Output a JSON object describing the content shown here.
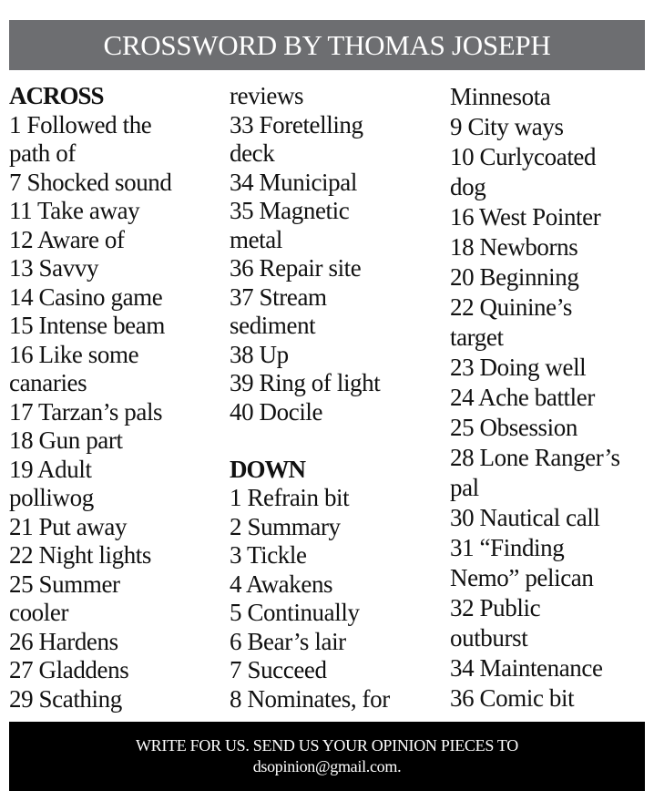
{
  "header": {
    "title": "CROSSWORD BY THOMAS JOSEPH"
  },
  "columns": [
    [
      {
        "text": "ACROSS",
        "heading": true
      },
      {
        "text": "1 Followed the"
      },
      {
        "text": "path of"
      },
      {
        "text": "7 Shocked sound"
      },
      {
        "text": "11 Take away"
      },
      {
        "text": "12 Aware of"
      },
      {
        "text": "13 Savvy"
      },
      {
        "text": "14 Casino game"
      },
      {
        "text": "15 Intense beam"
      },
      {
        "text": "16 Like some"
      },
      {
        "text": "canaries"
      },
      {
        "text": "17 Tarzan’s pals"
      },
      {
        "text": "18 Gun part"
      },
      {
        "text": "19 Adult"
      },
      {
        "text": "polliwog"
      },
      {
        "text": "21 Put away"
      },
      {
        "text": "22 Night lights"
      },
      {
        "text": "25 Summer"
      },
      {
        "text": "cooler"
      },
      {
        "text": "26 Hardens"
      },
      {
        "text": "27 Gladdens"
      },
      {
        "text": "29 Scathing"
      }
    ],
    [
      {
        "text": "reviews"
      },
      {
        "text": "33 Foretelling"
      },
      {
        "text": "deck"
      },
      {
        "text": "34 Municipal"
      },
      {
        "text": "35 Magnetic"
      },
      {
        "text": "metal"
      },
      {
        "text": "36 Repair site"
      },
      {
        "text": "37 Stream"
      },
      {
        "text": "sediment"
      },
      {
        "text": "38 Up"
      },
      {
        "text": "39 Ring of light"
      },
      {
        "text": "40 Docile"
      },
      {
        "text": ""
      },
      {
        "text": "DOWN",
        "heading": true
      },
      {
        "text": "1 Refrain bit"
      },
      {
        "text": "2 Summary"
      },
      {
        "text": "3 Tickle"
      },
      {
        "text": "4 Awakens"
      },
      {
        "text": "5 Continually"
      },
      {
        "text": "6 Bear’s lair"
      },
      {
        "text": "7 Succeed"
      },
      {
        "text": "8 Nominates, for"
      }
    ],
    [
      {
        "text": "Minnesota"
      },
      {
        "text": "9 City ways"
      },
      {
        "text": "10 Curlycoated"
      },
      {
        "text": "dog"
      },
      {
        "text": "16 West Pointer"
      },
      {
        "text": "18 Newborns"
      },
      {
        "text": "20 Beginning"
      },
      {
        "text": "22 Quinine’s"
      },
      {
        "text": "target"
      },
      {
        "text": "23 Doing well"
      },
      {
        "text": "24 Ache battler"
      },
      {
        "text": "25 Obsession"
      },
      {
        "text": "28 Lone Ranger’s"
      },
      {
        "text": "pal"
      },
      {
        "text": "30 Nautical call"
      },
      {
        "text": "31 “Finding"
      },
      {
        "text": "Nemo” pelican"
      },
      {
        "text": "32 Public"
      },
      {
        "text": "outburst"
      },
      {
        "text": "34 Maintenance"
      },
      {
        "text": "36 Comic bit"
      }
    ]
  ],
  "footer": {
    "line1": "WRITE FOR US. SEND US YOUR OPINION PIECES TO",
    "line2": "dsopinion@gmail.com."
  },
  "colors": {
    "header_bg": "#6d6e71",
    "footer_bg": "#000000"
  }
}
